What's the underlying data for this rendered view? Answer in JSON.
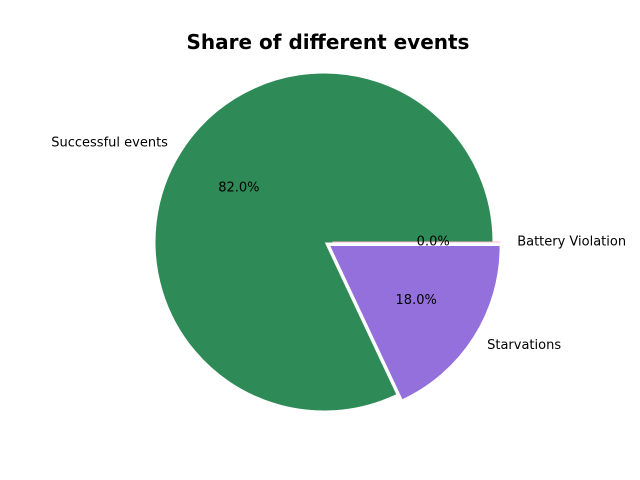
{
  "chart_data": {
    "type": "pie",
    "title": "Share of different events",
    "slices": [
      {
        "label": "Successful events",
        "value": 82.0,
        "pct_label": "82.0%",
        "color": "#2e8b57",
        "explode": false
      },
      {
        "label": "Starvations",
        "value": 18.0,
        "pct_label": "18.0%",
        "color": "#9370db",
        "explode": true
      },
      {
        "label": "Battery Violation",
        "value": 0.0,
        "pct_label": "0.0%",
        "color": "#ffb6c1",
        "explode": true
      }
    ]
  }
}
